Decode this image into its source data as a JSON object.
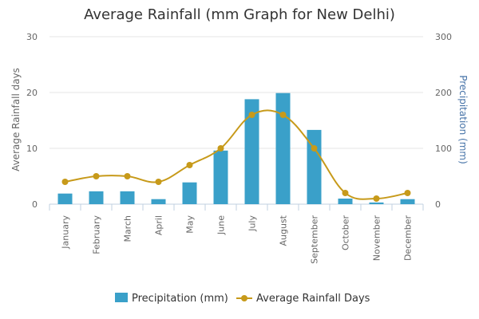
{
  "chart_data": {
    "type": "bar",
    "title": "Average Rainfall (mm Graph for New Delhi)",
    "categories": [
      "January",
      "February",
      "March",
      "April",
      "May",
      "June",
      "July",
      "August",
      "September",
      "October",
      "November",
      "December"
    ],
    "series": [
      {
        "name": "Precipitation (mm)",
        "type": "bar",
        "axis": "right",
        "color": "#3aa0c9",
        "values": [
          19,
          23,
          23,
          9,
          39,
          96,
          188,
          199,
          133,
          10,
          3,
          9
        ]
      },
      {
        "name": "Average Rainfall Days",
        "type": "line",
        "axis": "left",
        "color": "#c79a1a",
        "values": [
          4,
          5,
          5,
          4,
          7,
          10,
          16,
          16,
          10,
          2,
          1,
          2
        ]
      }
    ],
    "yleft": {
      "label": "Average Rainfall days",
      "range": [
        0,
        30
      ],
      "ticks": [
        0,
        10,
        20,
        30
      ]
    },
    "yright": {
      "label": "Precipitation (mm)",
      "range": [
        0,
        300
      ],
      "ticks": [
        0,
        100,
        200,
        300
      ]
    },
    "grid": true,
    "legend": "bottom-center"
  }
}
